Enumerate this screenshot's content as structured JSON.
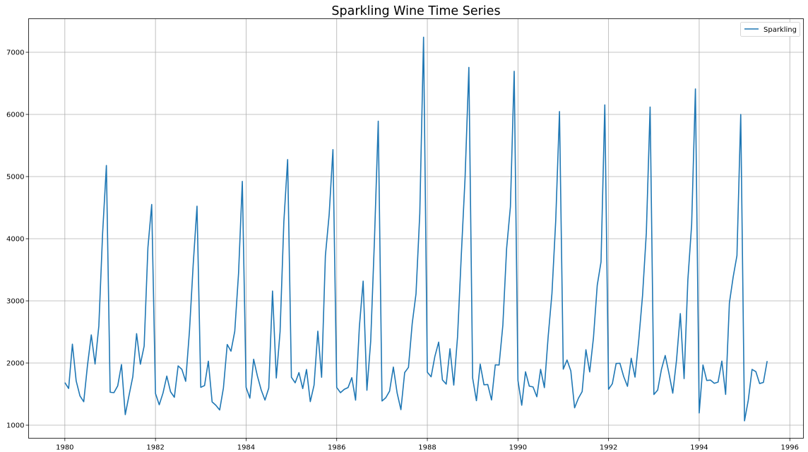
{
  "chart_data": {
    "type": "line",
    "title": "Sparkling Wine Time Series",
    "xlabel": "",
    "ylabel": "",
    "x_start": "1980-01",
    "x_frequency": "monthly",
    "xlim": [
      1979.2,
      1996.3
    ],
    "ylim": [
      790,
      7540
    ],
    "x_ticks": [
      1980,
      1982,
      1984,
      1986,
      1988,
      1990,
      1992,
      1994,
      1996
    ],
    "y_ticks": [
      1000,
      2000,
      3000,
      4000,
      5000,
      6000,
      7000
    ],
    "grid": true,
    "legend_position": "upper right",
    "series": [
      {
        "name": "Sparkling",
        "color": "#1f77b4",
        "values": [
          1686,
          1591,
          2304,
          1712,
          1471,
          1377,
          1966,
          2453,
          1984,
          2596,
          4087,
          5179,
          1530,
          1523,
          1633,
          1976,
          1170,
          1480,
          1781,
          2472,
          1981,
          2273,
          3857,
          4551,
          1510,
          1329,
          1518,
          1790,
          1537,
          1449,
          1954,
          1897,
          1706,
          2514,
          3593,
          4524,
          1609,
          1638,
          2030,
          1375,
          1320,
          1245,
          1600,
          2298,
          2191,
          2511,
          3440,
          4923,
          1609,
          1435,
          2061,
          1789,
          1567,
          1404,
          1597,
          3159,
          1759,
          2504,
          4273,
          5274,
          1771,
          1682,
          1846,
          1589,
          1896,
          1379,
          1645,
          2512,
          1771,
          3727,
          4388,
          5434,
          1606,
          1523,
          1577,
          1605,
          1765,
          1403,
          2584,
          3318,
          1562,
          2349,
          3987,
          5891,
          1389,
          1442,
          1548,
          1935,
          1518,
          1250,
          1847,
          1930,
          2638,
          3114,
          4405,
          7242,
          1853,
          1779,
          2108,
          2336,
          1728,
          1661,
          2230,
          1645,
          2421,
          3740,
          4988,
          6757,
          1757,
          1394,
          1982,
          1650,
          1654,
          1406,
          1971,
          1968,
          2608,
          3845,
          4514,
          6694,
          1720,
          1321,
          1859,
          1628,
          1615,
          1457,
          1899,
          1605,
          2424,
          3116,
          4286,
          6047,
          1902,
          2049,
          1874,
          1279,
          1432,
          1540,
          2214,
          1857,
          2408,
          3252,
          3627,
          6153,
          1577,
          1667,
          1993,
          1997,
          1783,
          1625,
          2076,
          1773,
          2377,
          3088,
          4096,
          6119,
          1494,
          1564,
          1898,
          2121,
          1831,
          1515,
          2048,
          2795,
          1749,
          3339,
          4227,
          6410,
          1197,
          1968,
          1720,
          1725,
          1674,
          1693,
          2031,
          1495,
          2968,
          3385,
          3729,
          5999,
          1070,
          1402,
          1897,
          1862,
          1670,
          1688,
          2031
        ]
      }
    ]
  }
}
